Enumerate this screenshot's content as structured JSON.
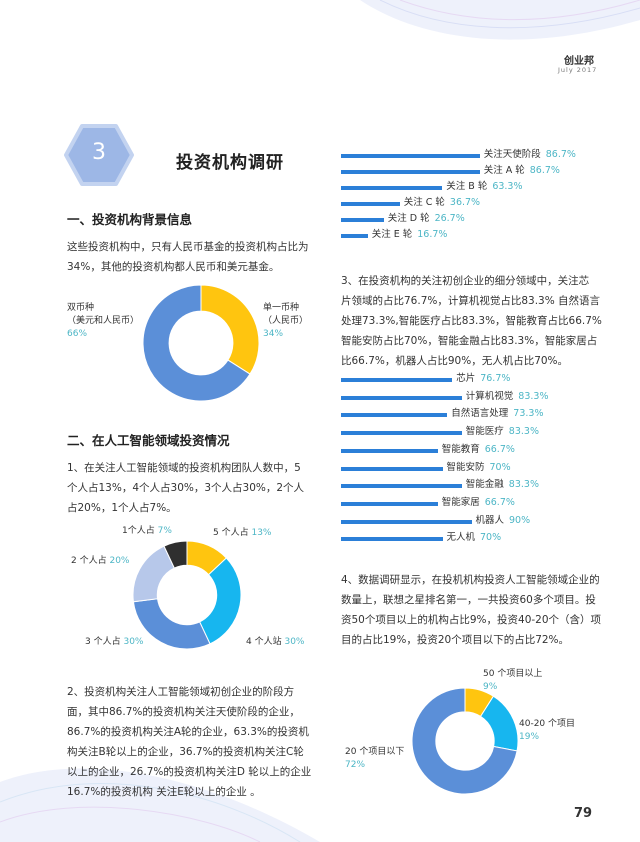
{
  "header": {
    "brand": "创业邦",
    "date": "July 2017"
  },
  "section": {
    "number": "3",
    "title": "投资机构调研"
  },
  "left": {
    "h1": "一、投资机构背景信息",
    "p1": [
      "这些投资机构中，只有人民币基金的投资机构占比为",
      "34%，其他的投资机构都人民币和美元基金。"
    ],
    "donut1": {
      "left_label": [
        "双币种",
        "（美元和人民币）"
      ],
      "left_value": "66%",
      "right_label": [
        "单一币种",
        "（人民币）"
      ],
      "right_value": "34%"
    },
    "h2": "二、在人工智能领域投资情况",
    "p2": [
      "1、在关注人工智能领域的投资机构团队人数中，5",
      "个人占13%，4个人占30%，3个人占30%，2个人",
      "占20%，1个人占7%。"
    ],
    "donut2": {
      "l1": "1个人占",
      "v1": "7%",
      "l5": "5 个人占",
      "v5": "13%",
      "l2": "2 个人占",
      "v2": "20%",
      "l3": "3 个人占",
      "v3": "30%",
      "l4": "4 个人站",
      "v4": "30%"
    },
    "p3": [
      "2、投资机构关注人工智能领域初创企业的阶段方",
      "面，其中86.7%的投资机构关注天使阶段的企业，",
      "86.7%的投资机构关注A轮的企业，63.3%的投资机",
      "构关注B轮以上的企业，36.7%的投资机构关注C轮",
      "以上的企业，26.7%的投资机构关注D 轮以上的企业",
      "16.7%的投资机构 关注E轮以上的企业 。"
    ]
  },
  "right": {
    "stages": [
      {
        "label": "关注天使阶段",
        "value": "86.7%"
      },
      {
        "label": "关注 A 轮",
        "value": "86.7%"
      },
      {
        "label": "关注 B 轮",
        "value": "63.3%"
      },
      {
        "label": "关注 C 轮",
        "value": "36.7%"
      },
      {
        "label": "关注 D 轮",
        "value": "26.7%"
      },
      {
        "label": "关注 E 轮",
        "value": "16.7%"
      }
    ],
    "p4": [
      "3、在投资机构的关注初创企业的细分领域中，关注芯",
      "片领域的占比76.7%，计算机视觉占比83.3% 自然语言",
      "处理73.3%,智能医疗占比83.3%，智能教育占比66.7%",
      "智能安防占比70%，智能金融占比83.3%，智能家居占",
      "比66.7%，机器人占比90%，无人机占比70%。"
    ],
    "sectors": [
      {
        "label": "芯片",
        "value": "76.7%"
      },
      {
        "label": "计算机视觉",
        "value": "83.3%"
      },
      {
        "label": "自然语言处理",
        "value": "73.3%"
      },
      {
        "label": "智能医疗",
        "value": "83.3%"
      },
      {
        "label": "智能教育",
        "value": "66.7%"
      },
      {
        "label": "智能安防",
        "value": "70%"
      },
      {
        "label": "智能金融",
        "value": "83.3%"
      },
      {
        "label": "智能家居",
        "value": "66.7%"
      },
      {
        "label": "机器人",
        "value": "90%"
      },
      {
        "label": "无人机",
        "value": "70%"
      }
    ],
    "p5": [
      "4、数据调研显示，在投机机构投资人工智能领域企业的",
      "数量上，联想之星排名第一，一共投资60多个项目。投",
      "资50个项目以上的机构占比9%，投资40-20个（含）项",
      "目的占比19%，投资20个项目以下的占比72%。"
    ],
    "donut3": {
      "l50": "50 个项目以上",
      "v50": "9%",
      "l40": "40-20 个项目",
      "v40": "19%",
      "l20": "20 个项目以下",
      "v20": "72%"
    }
  },
  "page_number": "79",
  "colors": {
    "blue": "#5b8fd8",
    "yellow": "#ffc50f",
    "cyan": "#17b6ef",
    "lightblue": "#b7c8ea",
    "dark": "#2f2f2f",
    "teal": "#4db6c6",
    "bar": "#2b7fd8"
  },
  "chart_data": [
    {
      "type": "pie",
      "categories": [
        "单一币种（人民币）",
        "双币种（美元和人民币）"
      ],
      "values": [
        34,
        66
      ]
    },
    {
      "type": "pie",
      "categories": [
        "5 个人占",
        "4 个人站",
        "3 个人占",
        "2 个人占",
        "1个人占"
      ],
      "values": [
        13,
        30,
        30,
        20,
        7
      ]
    },
    {
      "type": "bar",
      "categories": [
        "关注天使阶段",
        "关注 A 轮",
        "关注 B 轮",
        "关注 C 轮",
        "关注 D 轮",
        "关注 E 轮"
      ],
      "values": [
        86.7,
        86.7,
        63.3,
        36.7,
        26.7,
        16.7
      ]
    },
    {
      "type": "bar",
      "categories": [
        "芯片",
        "计算机视觉",
        "自然语言处理",
        "智能医疗",
        "智能教育",
        "智能安防",
        "智能金融",
        "智能家居",
        "机器人",
        "无人机"
      ],
      "values": [
        76.7,
        83.3,
        73.3,
        83.3,
        66.7,
        70,
        83.3,
        66.7,
        90,
        70
      ]
    },
    {
      "type": "pie",
      "categories": [
        "50 个项目以上",
        "40-20 个项目",
        "20 个项目以下"
      ],
      "values": [
        9,
        19,
        72
      ]
    }
  ]
}
